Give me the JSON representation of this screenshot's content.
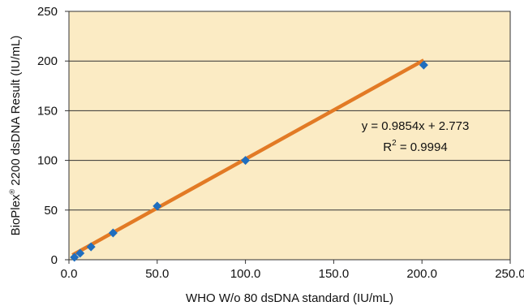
{
  "chart_data": {
    "type": "scatter",
    "xlabel": "WHO W/o 80 dsDNA standard (IU/mL)",
    "ylabel": {
      "prefix": "BioPlex",
      "sup": "®",
      "suffix": " 2200 dsDNA Result (IU/mL)"
    },
    "xlim": [
      0,
      250
    ],
    "ylim": [
      0,
      250
    ],
    "x_ticks": [
      "0.0",
      "50.0",
      "100.0",
      "150.0",
      "200.0",
      "250.0"
    ],
    "y_ticks": [
      "0",
      "50",
      "100",
      "150",
      "200",
      "250"
    ],
    "grid": "horizontal",
    "series": [
      {
        "marker": "diamond",
        "color": "#1f6ebf",
        "points": [
          {
            "x": 3.1,
            "y": 2.5
          },
          {
            "x": 6.3,
            "y": 6.5
          },
          {
            "x": 12.5,
            "y": 13
          },
          {
            "x": 25.0,
            "y": 27
          },
          {
            "x": 50.0,
            "y": 54
          },
          {
            "x": 100.0,
            "y": 100
          },
          {
            "x": 201.0,
            "y": 196
          }
        ]
      }
    ],
    "trendline": {
      "color": "#e27a25",
      "slope": 0.9854,
      "intercept": 2.773,
      "x_start": 2.0,
      "x_end": 201.0,
      "equation": "y = 0.9854x + 2.773",
      "r2": {
        "prefix": "R",
        "sup": "2",
        "suffix": " = 0.9994"
      }
    },
    "colors": {
      "plot_background": "#fbebc4",
      "gridline": "#333333"
    }
  }
}
